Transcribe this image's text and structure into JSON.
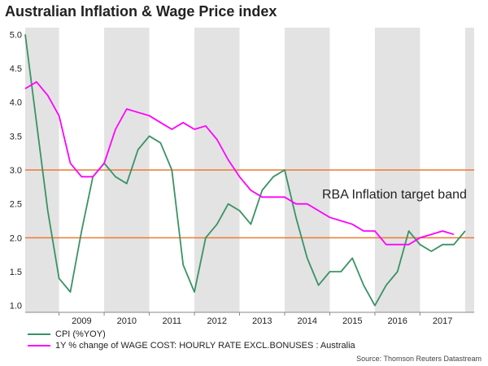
{
  "chart_data": {
    "type": "line",
    "title": "Australian Inflation & Wage Price index",
    "x_years": [
      "2009",
      "2010",
      "2011",
      "2012",
      "2013",
      "2014",
      "2015",
      "2016",
      "2017"
    ],
    "shaded_years": [
      "2008",
      "2010",
      "2012",
      "2014",
      "2016",
      "2018"
    ],
    "xlim": [
      2008.25,
      2018.2
    ],
    "ylim": [
      0.9,
      5.1
    ],
    "yticks": [
      "1.0",
      "1.5",
      "2.0",
      "2.5",
      "3.0",
      "3.5",
      "4.0",
      "4.5",
      "5.0"
    ],
    "reference_lines": [
      {
        "value": 2.0,
        "color": "#ec7a35"
      },
      {
        "value": 3.0,
        "color": "#ec7a35"
      }
    ],
    "annotation": "RBA Inflation target band",
    "series": [
      {
        "name": "CPI (%YOY)",
        "color": "#3a9265",
        "x": [
          2008.25,
          2008.5,
          2008.75,
          2009.0,
          2009.25,
          2009.5,
          2009.75,
          2010.0,
          2010.25,
          2010.5,
          2010.75,
          2011.0,
          2011.25,
          2011.5,
          2011.75,
          2012.0,
          2012.25,
          2012.5,
          2012.75,
          2013.0,
          2013.25,
          2013.5,
          2013.75,
          2014.0,
          2014.25,
          2014.5,
          2014.75,
          2015.0,
          2015.25,
          2015.5,
          2015.75,
          2016.0,
          2016.25,
          2016.5,
          2016.75,
          2017.0,
          2017.25,
          2017.5,
          2017.75,
          2018.0
        ],
        "values": [
          5.0,
          3.7,
          2.4,
          1.4,
          1.2,
          2.1,
          2.9,
          3.1,
          2.9,
          2.8,
          3.3,
          3.5,
          3.4,
          3.0,
          1.6,
          1.2,
          2.0,
          2.2,
          2.5,
          2.4,
          2.2,
          2.7,
          2.9,
          3.0,
          2.3,
          1.7,
          1.3,
          1.5,
          1.5,
          1.7,
          1.3,
          1.0,
          1.3,
          1.5,
          2.1,
          1.9,
          1.8,
          1.9,
          1.9,
          2.1
        ]
      },
      {
        "name": "1Y % change of WAGE COST: HOURLY RATE EXCL.BONUSES : Australia",
        "color": "#ff00ff",
        "x": [
          2008.25,
          2008.5,
          2008.75,
          2009.0,
          2009.25,
          2009.5,
          2009.75,
          2010.0,
          2010.25,
          2010.5,
          2010.75,
          2011.0,
          2011.25,
          2011.5,
          2011.75,
          2012.0,
          2012.25,
          2012.5,
          2012.75,
          2013.0,
          2013.25,
          2013.5,
          2013.75,
          2014.0,
          2014.25,
          2014.5,
          2014.75,
          2015.0,
          2015.25,
          2015.5,
          2015.75,
          2016.0,
          2016.25,
          2016.5,
          2016.75,
          2017.0,
          2017.25,
          2017.5,
          2017.75
        ],
        "values": [
          4.2,
          4.3,
          4.1,
          3.8,
          3.1,
          2.9,
          2.9,
          3.1,
          3.6,
          3.9,
          3.85,
          3.8,
          3.7,
          3.6,
          3.7,
          3.6,
          3.65,
          3.45,
          3.15,
          2.9,
          2.7,
          2.6,
          2.6,
          2.6,
          2.5,
          2.5,
          2.4,
          2.3,
          2.25,
          2.2,
          2.1,
          2.1,
          1.9,
          1.9,
          1.9,
          2.0,
          2.05,
          2.1,
          2.05
        ]
      }
    ],
    "source": "Source: Thomson Reuters Datastream"
  }
}
